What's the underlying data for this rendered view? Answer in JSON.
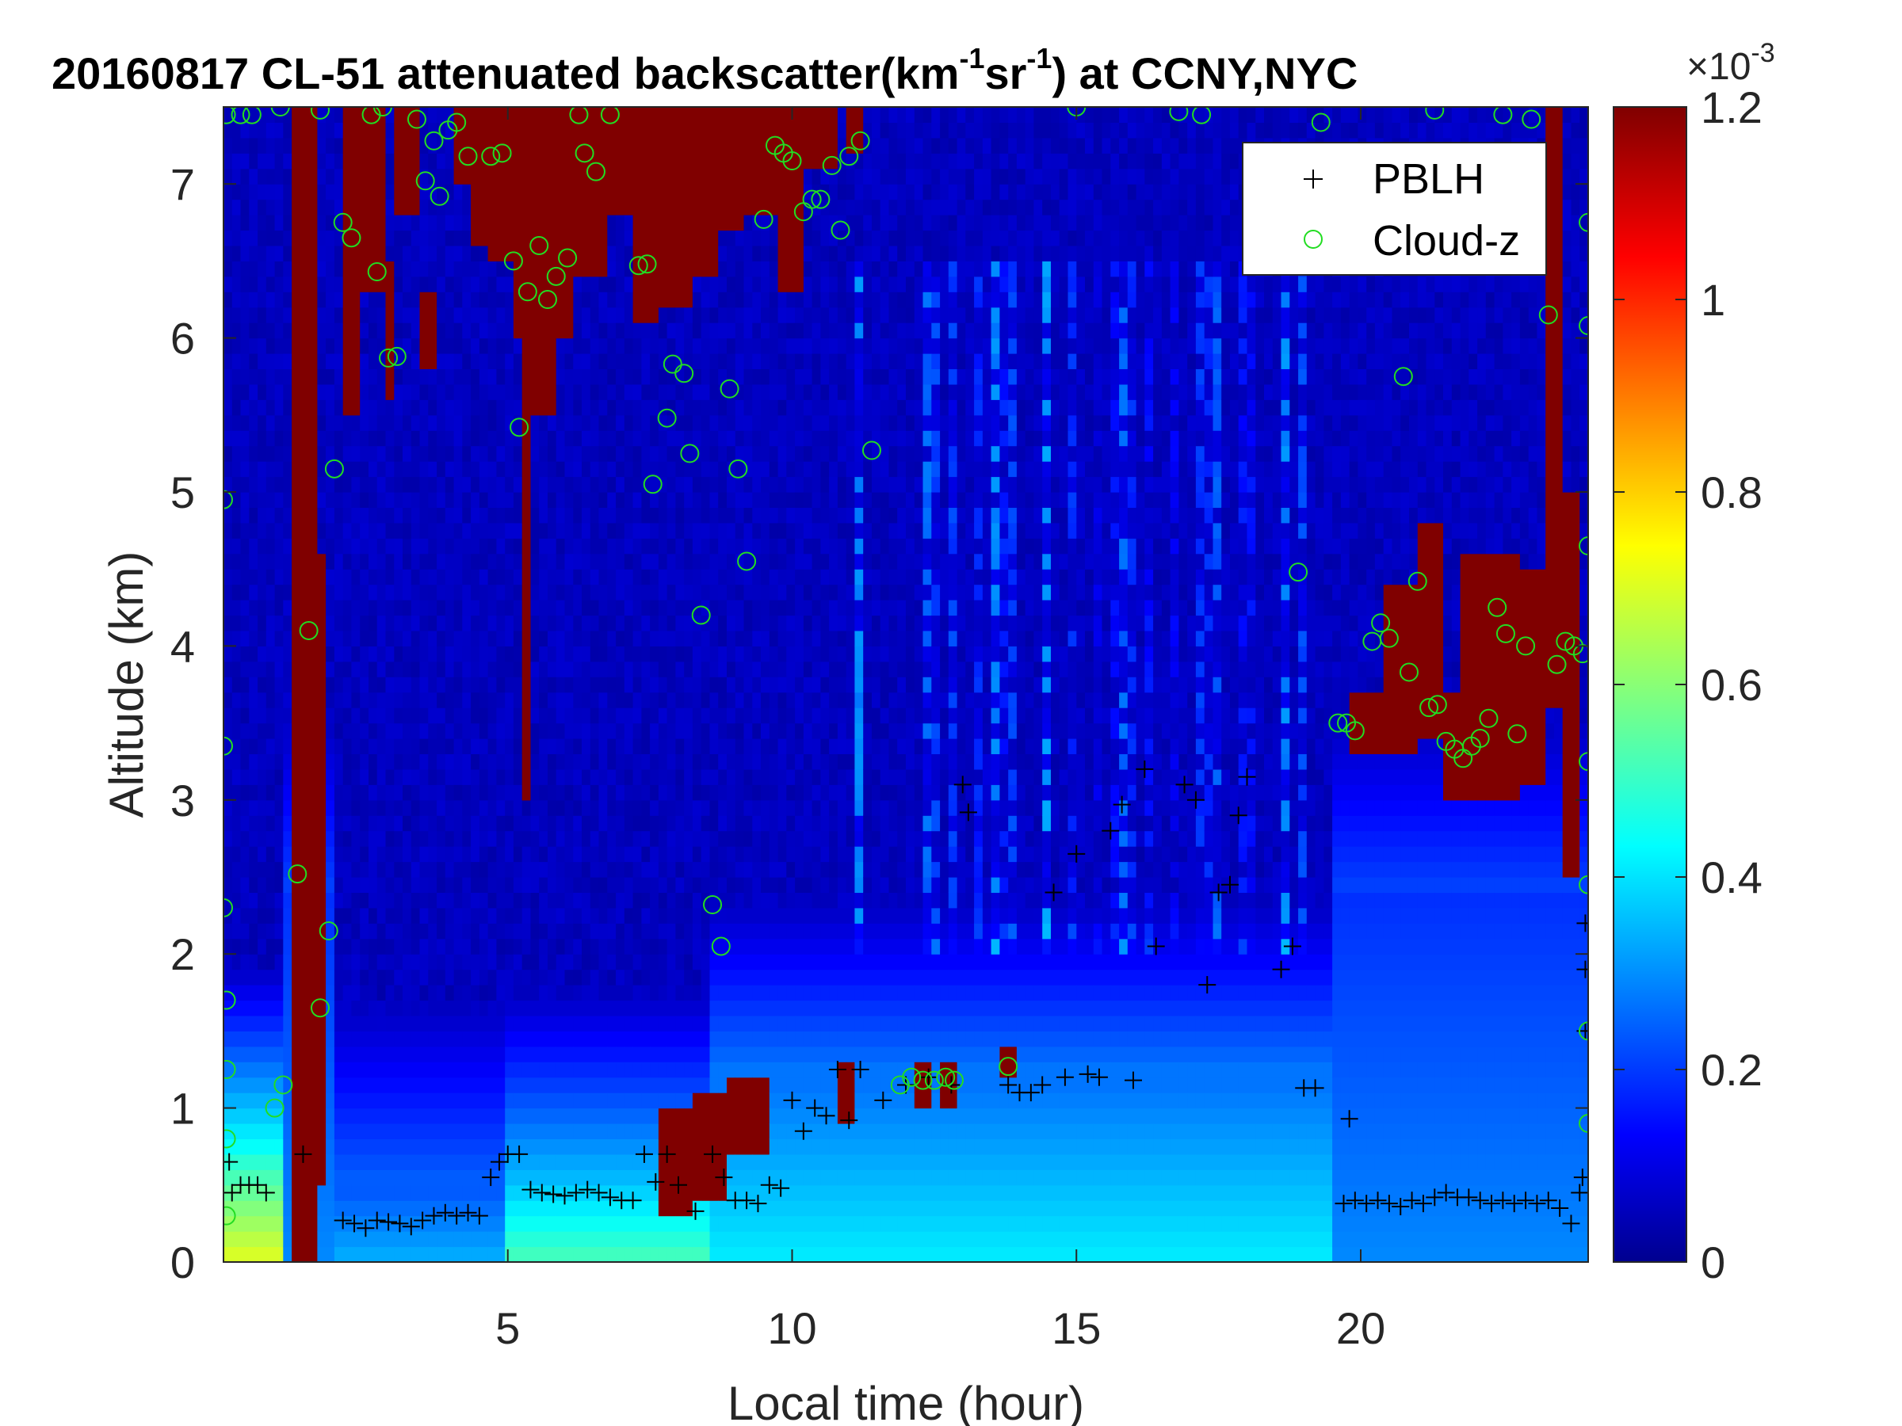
{
  "chart_data": {
    "type": "heatmap",
    "title_main": "20160817  CL-51 attenuated backscatter(km",
    "title_exp1": "-1",
    "title_mid": "sr",
    "title_exp2": "-1",
    "title_end": ") at CCNY,NYC",
    "xlabel": "Local time (hour)",
    "ylabel": "Altitude (km)",
    "xlim": [
      0,
      24
    ],
    "ylim": [
      0,
      7.5
    ],
    "x_ticks": [
      5,
      10,
      15,
      20
    ],
    "y_ticks": [
      0,
      1,
      2,
      3,
      4,
      5,
      6,
      7
    ],
    "colormap": "jet",
    "colorbar": {
      "range": [
        0,
        0.0012
      ],
      "ticks": [
        0,
        0.2,
        0.4,
        0.6,
        0.8,
        1,
        1.2
      ],
      "tick_labels": [
        "0",
        "0.2",
        "0.4",
        "0.6",
        "0.8",
        "1",
        "1.2"
      ],
      "exponent_base": "×10",
      "exponent": "-3"
    },
    "legend": {
      "placement": "top-right",
      "entries": [
        {
          "label": "PBLH",
          "marker": "plus",
          "color": "#000000"
        },
        {
          "label": "Cloud-z",
          "marker": "circle",
          "color": "#22dd22"
        }
      ]
    },
    "background_level": 0.04,
    "near_surface_aerosol": [
      {
        "x0": 0,
        "x1": 1.0,
        "top_km": 0.75,
        "level": 0.6
      },
      {
        "x0": 2.0,
        "x1": 5.0,
        "top_km": 0.55,
        "level": 0.3
      },
      {
        "x0": 5.0,
        "x1": 8.5,
        "top_km": 0.6,
        "level": 0.45
      },
      {
        "x0": 8.5,
        "x1": 19.5,
        "top_km": 1.2,
        "level": 0.36
      },
      {
        "x0": 19.5,
        "x1": 24.0,
        "top_km": 2.4,
        "level": 0.26
      }
    ],
    "cloud_regions": [
      {
        "x0": 1.15,
        "x1": 1.65,
        "z0": 0.0,
        "z1": 7.5
      },
      {
        "x0": 1.65,
        "x1": 1.8,
        "z0": 0.5,
        "z1": 4.6
      },
      {
        "x0": 2.05,
        "x1": 2.4,
        "z0": 5.5,
        "z1": 7.5
      },
      {
        "x0": 2.4,
        "x1": 2.8,
        "z0": 6.3,
        "z1": 7.5
      },
      {
        "x0": 2.8,
        "x1": 3.0,
        "z0": 5.6,
        "z1": 6.5
      },
      {
        "x0": 3.0,
        "x1": 3.5,
        "z0": 6.8,
        "z1": 7.5
      },
      {
        "x0": 3.5,
        "x1": 3.7,
        "z0": 5.8,
        "z1": 6.3
      },
      {
        "x0": 4.0,
        "x1": 4.3,
        "z0": 7.0,
        "z1": 7.5
      },
      {
        "x0": 4.3,
        "x1": 4.7,
        "z0": 6.6,
        "z1": 7.5
      },
      {
        "x0": 4.7,
        "x1": 5.1,
        "z0": 6.5,
        "z1": 7.5
      },
      {
        "x0": 5.1,
        "x1": 5.4,
        "z0": 6.0,
        "z1": 7.5
      },
      {
        "x0": 5.2,
        "x1": 5.45,
        "z0": 3.0,
        "z1": 6.0
      },
      {
        "x0": 5.4,
        "x1": 5.8,
        "z0": 5.5,
        "z1": 7.5
      },
      {
        "x0": 5.8,
        "x1": 6.2,
        "z0": 6.0,
        "z1": 7.5
      },
      {
        "x0": 6.2,
        "x1": 6.7,
        "z0": 6.4,
        "z1": 7.5
      },
      {
        "x0": 6.7,
        "x1": 7.2,
        "z0": 6.8,
        "z1": 7.5
      },
      {
        "x0": 7.2,
        "x1": 7.6,
        "z0": 6.1,
        "z1": 7.5
      },
      {
        "x0": 7.6,
        "x1": 8.2,
        "z0": 6.2,
        "z1": 7.5
      },
      {
        "x0": 8.2,
        "x1": 8.7,
        "z0": 6.4,
        "z1": 7.5
      },
      {
        "x0": 8.7,
        "x1": 9.2,
        "z0": 6.7,
        "z1": 7.5
      },
      {
        "x0": 9.2,
        "x1": 9.8,
        "z0": 6.8,
        "z1": 7.5
      },
      {
        "x0": 9.8,
        "x1": 10.2,
        "z0": 6.3,
        "z1": 7.5
      },
      {
        "x0": 10.2,
        "x1": 10.8,
        "z0": 7.1,
        "z1": 7.5
      },
      {
        "x0": 10.9,
        "x1": 11.3,
        "z0": 7.2,
        "z1": 7.5
      },
      {
        "x0": 7.6,
        "x1": 8.2,
        "z0": 0.35,
        "z1": 1.05
      },
      {
        "x0": 8.2,
        "x1": 8.8,
        "z0": 0.45,
        "z1": 1.15
      },
      {
        "x0": 8.8,
        "x1": 9.6,
        "z0": 0.75,
        "z1": 1.2
      },
      {
        "x0": 10.8,
        "x1": 11.1,
        "z0": 0.95,
        "z1": 1.3
      },
      {
        "x0": 12.1,
        "x1": 12.4,
        "z0": 1.05,
        "z1": 1.35
      },
      {
        "x0": 12.6,
        "x1": 12.9,
        "z0": 1.0,
        "z1": 1.3
      },
      {
        "x0": 13.7,
        "x1": 13.9,
        "z0": 1.2,
        "z1": 1.4
      },
      {
        "x0": 19.8,
        "x1": 20.5,
        "z0": 3.3,
        "z1": 3.7
      },
      {
        "x0": 20.4,
        "x1": 21.0,
        "z0": 3.3,
        "z1": 4.4
      },
      {
        "x0": 21.0,
        "x1": 21.4,
        "z0": 3.4,
        "z1": 4.8
      },
      {
        "x0": 21.4,
        "x1": 21.9,
        "z0": 3.0,
        "z1": 3.7
      },
      {
        "x0": 21.8,
        "x1": 22.8,
        "z0": 3.0,
        "z1": 4.6
      },
      {
        "x0": 22.8,
        "x1": 23.3,
        "z0": 3.1,
        "z1": 4.5
      },
      {
        "x0": 23.3,
        "x1": 23.6,
        "z0": 3.6,
        "z1": 7.5
      },
      {
        "x0": 23.6,
        "x1": 23.85,
        "z0": 2.5,
        "z1": 5.0
      }
    ],
    "pblh_points": [
      {
        "x": 0.1,
        "y": 0.65
      },
      {
        "x": 0.15,
        "y": 0.45
      },
      {
        "x": 0.3,
        "y": 0.5
      },
      {
        "x": 0.45,
        "y": 0.5
      },
      {
        "x": 0.6,
        "y": 0.5
      },
      {
        "x": 0.75,
        "y": 0.45
      },
      {
        "x": 1.4,
        "y": 0.7
      },
      {
        "x": 2.1,
        "y": 0.27
      },
      {
        "x": 2.3,
        "y": 0.25
      },
      {
        "x": 2.5,
        "y": 0.22
      },
      {
        "x": 2.7,
        "y": 0.27
      },
      {
        "x": 2.9,
        "y": 0.26
      },
      {
        "x": 3.1,
        "y": 0.25
      },
      {
        "x": 3.3,
        "y": 0.23
      },
      {
        "x": 3.5,
        "y": 0.27
      },
      {
        "x": 3.7,
        "y": 0.3
      },
      {
        "x": 3.9,
        "y": 0.32
      },
      {
        "x": 4.1,
        "y": 0.3
      },
      {
        "x": 4.3,
        "y": 0.32
      },
      {
        "x": 4.5,
        "y": 0.3
      },
      {
        "x": 4.7,
        "y": 0.55
      },
      {
        "x": 4.85,
        "y": 0.65
      },
      {
        "x": 5.0,
        "y": 0.7
      },
      {
        "x": 5.2,
        "y": 0.7
      },
      {
        "x": 5.4,
        "y": 0.47
      },
      {
        "x": 5.6,
        "y": 0.45
      },
      {
        "x": 5.8,
        "y": 0.44
      },
      {
        "x": 6.0,
        "y": 0.43
      },
      {
        "x": 6.2,
        "y": 0.45
      },
      {
        "x": 6.4,
        "y": 0.47
      },
      {
        "x": 6.6,
        "y": 0.45
      },
      {
        "x": 6.8,
        "y": 0.42
      },
      {
        "x": 7.0,
        "y": 0.4
      },
      {
        "x": 7.2,
        "y": 0.4
      },
      {
        "x": 7.4,
        "y": 0.7
      },
      {
        "x": 7.6,
        "y": 0.52
      },
      {
        "x": 7.8,
        "y": 0.7
      },
      {
        "x": 8.0,
        "y": 0.5
      },
      {
        "x": 8.3,
        "y": 0.33
      },
      {
        "x": 8.6,
        "y": 0.7
      },
      {
        "x": 8.8,
        "y": 0.55
      },
      {
        "x": 9.0,
        "y": 0.4
      },
      {
        "x": 9.2,
        "y": 0.4
      },
      {
        "x": 9.4,
        "y": 0.38
      },
      {
        "x": 9.6,
        "y": 0.5
      },
      {
        "x": 9.8,
        "y": 0.48
      },
      {
        "x": 10.0,
        "y": 1.05
      },
      {
        "x": 10.2,
        "y": 0.85
      },
      {
        "x": 10.4,
        "y": 1.0
      },
      {
        "x": 10.6,
        "y": 0.95
      },
      {
        "x": 10.8,
        "y": 1.25
      },
      {
        "x": 11.0,
        "y": 0.92
      },
      {
        "x": 11.2,
        "y": 1.25
      },
      {
        "x": 11.6,
        "y": 1.05
      },
      {
        "x": 12.0,
        "y": 1.15
      },
      {
        "x": 12.4,
        "y": 1.2
      },
      {
        "x": 12.8,
        "y": 1.15
      },
      {
        "x": 13.0,
        "y": 3.1
      },
      {
        "x": 13.1,
        "y": 2.92
      },
      {
        "x": 13.8,
        "y": 1.15
      },
      {
        "x": 14.0,
        "y": 1.1
      },
      {
        "x": 14.2,
        "y": 1.1
      },
      {
        "x": 14.4,
        "y": 1.15
      },
      {
        "x": 14.6,
        "y": 2.4
      },
      {
        "x": 14.8,
        "y": 1.2
      },
      {
        "x": 15.0,
        "y": 2.65
      },
      {
        "x": 15.2,
        "y": 1.22
      },
      {
        "x": 15.4,
        "y": 1.2
      },
      {
        "x": 15.6,
        "y": 2.8
      },
      {
        "x": 15.8,
        "y": 2.97
      },
      {
        "x": 16.0,
        "y": 1.18
      },
      {
        "x": 16.2,
        "y": 3.2
      },
      {
        "x": 16.4,
        "y": 2.05
      },
      {
        "x": 16.9,
        "y": 3.1
      },
      {
        "x": 17.1,
        "y": 3.0
      },
      {
        "x": 17.3,
        "y": 1.8
      },
      {
        "x": 17.5,
        "y": 2.4
      },
      {
        "x": 17.7,
        "y": 2.45
      },
      {
        "x": 17.85,
        "y": 2.9
      },
      {
        "x": 18.0,
        "y": 3.15
      },
      {
        "x": 18.6,
        "y": 1.9
      },
      {
        "x": 18.8,
        "y": 2.05
      },
      {
        "x": 19.0,
        "y": 1.13
      },
      {
        "x": 19.2,
        "y": 1.13
      },
      {
        "x": 19.8,
        "y": 0.93
      },
      {
        "x": 19.7,
        "y": 0.38
      },
      {
        "x": 19.9,
        "y": 0.4
      },
      {
        "x": 20.1,
        "y": 0.38
      },
      {
        "x": 20.3,
        "y": 0.4
      },
      {
        "x": 20.5,
        "y": 0.38
      },
      {
        "x": 20.7,
        "y": 0.36
      },
      {
        "x": 20.9,
        "y": 0.4
      },
      {
        "x": 21.1,
        "y": 0.38
      },
      {
        "x": 21.3,
        "y": 0.42
      },
      {
        "x": 21.5,
        "y": 0.45
      },
      {
        "x": 21.7,
        "y": 0.42
      },
      {
        "x": 21.9,
        "y": 0.42
      },
      {
        "x": 22.1,
        "y": 0.4
      },
      {
        "x": 22.3,
        "y": 0.38
      },
      {
        "x": 22.5,
        "y": 0.4
      },
      {
        "x": 22.7,
        "y": 0.38
      },
      {
        "x": 22.9,
        "y": 0.4
      },
      {
        "x": 23.1,
        "y": 0.38
      },
      {
        "x": 23.3,
        "y": 0.4
      },
      {
        "x": 23.5,
        "y": 0.35
      },
      {
        "x": 23.7,
        "y": 0.25
      },
      {
        "x": 23.85,
        "y": 0.45
      },
      {
        "x": 23.9,
        "y": 0.55
      },
      {
        "x": 23.95,
        "y": 2.2
      },
      {
        "x": 23.95,
        "y": 1.9
      },
      {
        "x": 23.95,
        "y": 1.5
      }
    ],
    "cloud_points": [
      {
        "x": 0.05,
        "y": 7.45
      },
      {
        "x": 0.3,
        "y": 7.45
      },
      {
        "x": 0.5,
        "y": 7.45
      },
      {
        "x": 1.0,
        "y": 7.5
      },
      {
        "x": 1.7,
        "y": 7.48
      },
      {
        "x": 2.6,
        "y": 7.45
      },
      {
        "x": 2.8,
        "y": 7.5
      },
      {
        "x": 0.0,
        "y": 4.95
      },
      {
        "x": 0.0,
        "y": 3.35
      },
      {
        "x": 0.0,
        "y": 2.3
      },
      {
        "x": 0.05,
        "y": 1.7
      },
      {
        "x": 0.05,
        "y": 1.25
      },
      {
        "x": 0.05,
        "y": 0.8
      },
      {
        "x": 0.05,
        "y": 0.3
      },
      {
        "x": 0.9,
        "y": 1.0
      },
      {
        "x": 1.05,
        "y": 1.15
      },
      {
        "x": 1.3,
        "y": 2.52
      },
      {
        "x": 1.5,
        "y": 4.1
      },
      {
        "x": 1.7,
        "y": 1.65
      },
      {
        "x": 1.85,
        "y": 2.15
      },
      {
        "x": 1.95,
        "y": 5.15
      },
      {
        "x": 2.1,
        "y": 6.75
      },
      {
        "x": 2.25,
        "y": 6.65
      },
      {
        "x": 2.7,
        "y": 6.43
      },
      {
        "x": 2.9,
        "y": 5.87
      },
      {
        "x": 3.05,
        "y": 5.88
      },
      {
        "x": 3.4,
        "y": 7.42
      },
      {
        "x": 3.55,
        "y": 7.02
      },
      {
        "x": 3.7,
        "y": 7.28
      },
      {
        "x": 3.8,
        "y": 6.92
      },
      {
        "x": 3.95,
        "y": 7.35
      },
      {
        "x": 4.1,
        "y": 7.4
      },
      {
        "x": 4.3,
        "y": 7.18
      },
      {
        "x": 4.7,
        "y": 7.18
      },
      {
        "x": 4.9,
        "y": 7.2
      },
      {
        "x": 5.1,
        "y": 6.5
      },
      {
        "x": 5.2,
        "y": 5.42
      },
      {
        "x": 5.35,
        "y": 6.3
      },
      {
        "x": 5.55,
        "y": 6.6
      },
      {
        "x": 5.7,
        "y": 6.25
      },
      {
        "x": 5.85,
        "y": 6.4
      },
      {
        "x": 6.05,
        "y": 6.52
      },
      {
        "x": 6.25,
        "y": 7.45
      },
      {
        "x": 6.35,
        "y": 7.2
      },
      {
        "x": 6.55,
        "y": 7.08
      },
      {
        "x": 6.8,
        "y": 7.45
      },
      {
        "x": 7.3,
        "y": 6.47
      },
      {
        "x": 7.45,
        "y": 6.48
      },
      {
        "x": 7.55,
        "y": 5.05
      },
      {
        "x": 7.8,
        "y": 5.48
      },
      {
        "x": 7.9,
        "y": 5.83
      },
      {
        "x": 8.1,
        "y": 5.77
      },
      {
        "x": 8.2,
        "y": 5.25
      },
      {
        "x": 8.4,
        "y": 4.2
      },
      {
        "x": 8.6,
        "y": 2.32
      },
      {
        "x": 8.75,
        "y": 2.05
      },
      {
        "x": 8.9,
        "y": 5.67
      },
      {
        "x": 9.05,
        "y": 5.15
      },
      {
        "x": 9.2,
        "y": 4.55
      },
      {
        "x": 9.5,
        "y": 6.77
      },
      {
        "x": 9.7,
        "y": 7.25
      },
      {
        "x": 9.85,
        "y": 7.2
      },
      {
        "x": 10.0,
        "y": 7.15
      },
      {
        "x": 10.2,
        "y": 6.82
      },
      {
        "x": 10.35,
        "y": 6.9
      },
      {
        "x": 10.5,
        "y": 6.9
      },
      {
        "x": 10.7,
        "y": 7.12
      },
      {
        "x": 10.85,
        "y": 6.7
      },
      {
        "x": 11.0,
        "y": 7.18
      },
      {
        "x": 11.2,
        "y": 7.28
      },
      {
        "x": 11.4,
        "y": 5.27
      },
      {
        "x": 11.9,
        "y": 1.15
      },
      {
        "x": 12.1,
        "y": 1.2
      },
      {
        "x": 12.3,
        "y": 1.18
      },
      {
        "x": 12.5,
        "y": 1.18
      },
      {
        "x": 12.7,
        "y": 1.2
      },
      {
        "x": 12.85,
        "y": 1.18
      },
      {
        "x": 13.8,
        "y": 1.27
      },
      {
        "x": 19.3,
        "y": 7.4
      },
      {
        "x": 18.9,
        "y": 4.48
      },
      {
        "x": 19.6,
        "y": 3.5
      },
      {
        "x": 19.75,
        "y": 3.5
      },
      {
        "x": 19.9,
        "y": 3.45
      },
      {
        "x": 20.2,
        "y": 4.03
      },
      {
        "x": 20.35,
        "y": 4.15
      },
      {
        "x": 20.5,
        "y": 4.05
      },
      {
        "x": 20.75,
        "y": 5.75
      },
      {
        "x": 20.85,
        "y": 3.83
      },
      {
        "x": 21.0,
        "y": 4.42
      },
      {
        "x": 21.2,
        "y": 3.6
      },
      {
        "x": 21.35,
        "y": 3.62
      },
      {
        "x": 21.5,
        "y": 3.38
      },
      {
        "x": 21.65,
        "y": 3.33
      },
      {
        "x": 21.8,
        "y": 3.27
      },
      {
        "x": 21.95,
        "y": 3.35
      },
      {
        "x": 22.1,
        "y": 3.4
      },
      {
        "x": 22.25,
        "y": 3.53
      },
      {
        "x": 22.4,
        "y": 4.25
      },
      {
        "x": 22.55,
        "y": 4.08
      },
      {
        "x": 22.75,
        "y": 3.43
      },
      {
        "x": 22.9,
        "y": 4.0
      },
      {
        "x": 23.3,
        "y": 6.15
      },
      {
        "x": 23.45,
        "y": 3.88
      },
      {
        "x": 23.6,
        "y": 4.03
      },
      {
        "x": 23.75,
        "y": 4.0
      },
      {
        "x": 23.9,
        "y": 3.95
      },
      {
        "x": 24.0,
        "y": 6.75
      },
      {
        "x": 24.0,
        "y": 6.08
      },
      {
        "x": 24.0,
        "y": 4.65
      },
      {
        "x": 24.0,
        "y": 3.25
      },
      {
        "x": 24.0,
        "y": 2.45
      },
      {
        "x": 24.0,
        "y": 1.5
      },
      {
        "x": 24.0,
        "y": 0.9
      },
      {
        "x": 15.0,
        "y": 7.5
      },
      {
        "x": 16.8,
        "y": 7.47
      },
      {
        "x": 17.2,
        "y": 7.45
      },
      {
        "x": 21.3,
        "y": 7.48
      },
      {
        "x": 22.5,
        "y": 7.45
      },
      {
        "x": 23.0,
        "y": 7.42
      }
    ]
  }
}
